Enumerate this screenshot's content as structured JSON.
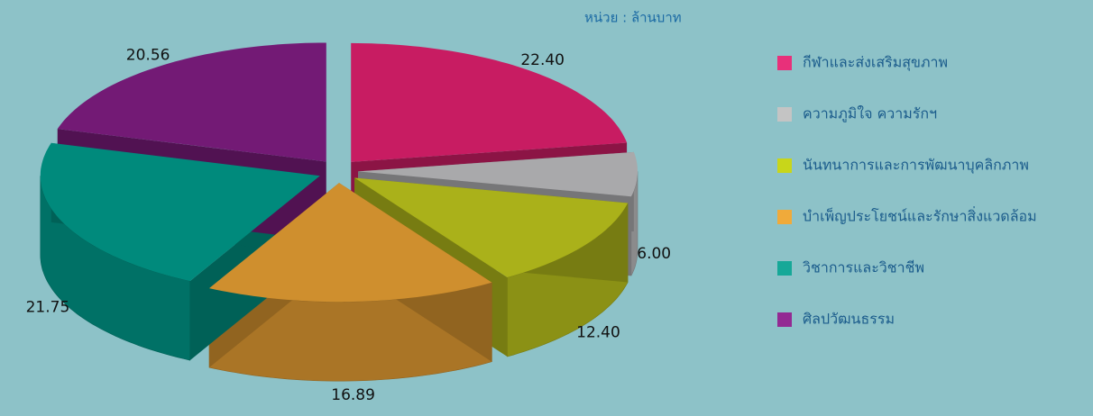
{
  "chart_data": {
    "type": "pie",
    "annotation": "หน่วย : ล้านบาท",
    "categories": [
      "กีฬาและส่งเสริมสุขภาพ",
      "ความภูมิใจ ความรักฯ",
      "นันทนาการและการพัฒนาบุคลิกภาพ",
      "บำเพ็ญประโยชน์และรักษาสิ่งแวดล้อม",
      "วิชาการและวิชาชีพ",
      "ศิลปวัฒนธรรม"
    ],
    "values": [
      22.4,
      6.0,
      12.4,
      16.89,
      21.75,
      20.56
    ],
    "value_labels": [
      "22.40",
      "6.00",
      "12.40",
      "16.89",
      "21.75",
      "20.56"
    ],
    "colors": [
      "#c81c62",
      "#a9a9ab",
      "#aab11a",
      "#cf8f2e",
      "#008a7c",
      "#731a75"
    ],
    "legend_colors": [
      "#e8307a",
      "#c4c4c4",
      "#c8d61a",
      "#f0aa3a",
      "#16a898",
      "#932a93"
    ],
    "legend": "right"
  }
}
